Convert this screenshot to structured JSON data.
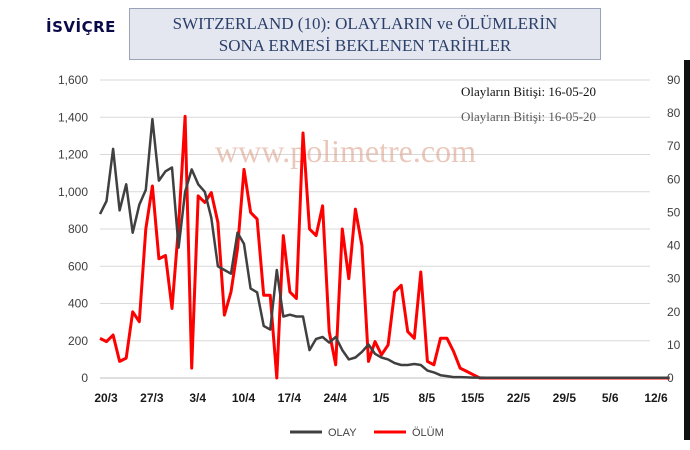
{
  "badge": "İSVİÇRE",
  "title_line1": "SWITZERLAND  (10): OLAYLARIN  ve ÖLÜMLERİN",
  "title_line2": "SONA ERMESİ BEKLENEN TARİHLER",
  "date_note_1": "Olayların Bitişi: 16-05-20",
  "date_note_2": "Olayların Bitişi: 16-05-20",
  "watermark": "www.polimetre.com",
  "colors": {
    "olay": "#404040",
    "olum": "#ff0000",
    "grid": "#d9d9d9"
  },
  "chart_data": {
    "type": "line",
    "x_start": "20/3",
    "x_tick_labels": [
      "20/3",
      "27/3",
      "3/4",
      "10/4",
      "17/4",
      "24/4",
      "1/5",
      "8/5",
      "15/5",
      "22/5",
      "29/5",
      "5/6",
      "12/6"
    ],
    "y_left_ticks": [
      "0",
      "200",
      "400",
      "600",
      "800",
      "1,000",
      "1,200",
      "1,400",
      "1,600"
    ],
    "y_left_lim": [
      0,
      1600
    ],
    "y_right_ticks": [
      "0",
      "10",
      "20",
      "30",
      "40",
      "50",
      "60",
      "70",
      "80",
      "90"
    ],
    "y_right_lim": [
      0,
      90
    ],
    "grid": true,
    "legend_position": "bottom",
    "series": [
      {
        "name": "OLAY",
        "axis": "left",
        "values": [
          880,
          950,
          1230,
          900,
          1040,
          780,
          930,
          1010,
          1390,
          1060,
          1110,
          1130,
          700,
          1000,
          1120,
          1040,
          1000,
          860,
          600,
          580,
          560,
          780,
          720,
          480,
          460,
          280,
          260,
          580,
          330,
          340,
          330,
          330,
          150,
          210,
          220,
          190,
          220,
          150,
          100,
          110,
          140,
          180,
          130,
          110,
          100,
          80,
          70,
          70,
          75,
          70,
          40,
          30,
          15,
          10,
          5,
          5,
          3,
          2,
          2,
          1,
          1,
          1,
          1,
          1,
          1,
          1,
          1,
          1,
          1,
          1,
          1,
          1,
          1,
          1,
          1,
          1,
          1,
          1,
          1,
          1,
          1,
          1,
          1,
          1,
          1,
          1,
          1,
          1
        ]
      },
      {
        "name": "ÖLÜM",
        "axis": "right",
        "values": [
          12,
          11,
          13,
          5,
          6,
          20,
          17,
          45,
          58,
          36,
          37,
          21,
          46,
          79,
          3,
          55,
          53,
          56,
          47,
          19,
          26,
          39,
          63,
          50,
          48,
          25,
          25,
          0,
          43,
          26,
          24,
          74,
          45,
          43,
          52,
          14,
          4,
          45,
          30,
          51,
          40,
          5,
          11,
          7,
          10,
          26,
          28,
          14,
          12,
          32,
          5,
          4,
          12,
          12,
          8,
          3,
          2,
          1,
          0,
          0,
          0,
          0,
          0,
          0,
          0,
          0,
          0,
          0,
          0,
          0,
          0,
          0,
          0,
          0,
          0,
          0,
          0,
          0,
          0,
          0,
          0,
          0,
          0,
          0,
          0,
          0,
          0,
          0
        ]
      }
    ]
  }
}
